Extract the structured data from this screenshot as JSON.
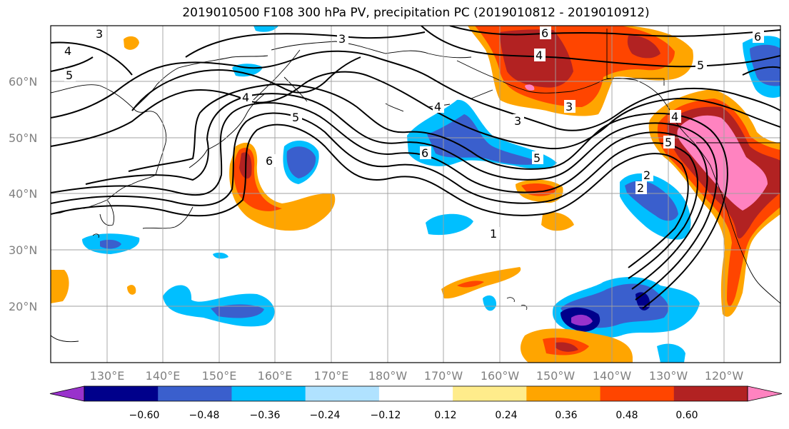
{
  "title": "2019010500 F108 300 hPa PV, precipitation PC (2019010812 - 2019010912)",
  "lat_labels": [
    "60°N",
    "50°N",
    "40°N",
    "30°N",
    "20°N"
  ],
  "lon_labels": [
    "130°E",
    "140°E",
    "150°E",
    "160°E",
    "170°E",
    "180°W",
    "170°W",
    "160°W",
    "150°W",
    "140°W",
    "130°W",
    "120°W"
  ],
  "colorbar": {
    "colors": [
      "#9932cc",
      "#00008b",
      "#3a5fcd",
      "#00bfff",
      "#b0e2ff",
      "#ffffff",
      "#ffec8b",
      "#ffa500",
      "#ff4500",
      "#b22222",
      "#ff83c0"
    ],
    "tick_labels": [
      "−0.60",
      "−0.48",
      "−0.36",
      "−0.24",
      "−0.12",
      "0.12",
      "0.24",
      "0.36",
      "0.48",
      "0.60"
    ]
  },
  "contour_labels": [
    "3",
    "4",
    "5",
    "6",
    "5",
    "4",
    "6",
    "3",
    "1",
    "2",
    "4",
    "3",
    "6",
    "5",
    "6",
    "4",
    "5",
    "2",
    "4",
    "5",
    "3"
  ],
  "colors": {
    "grid": "#a0a0a0",
    "coast": "#000000",
    "contour": "#000000"
  }
}
